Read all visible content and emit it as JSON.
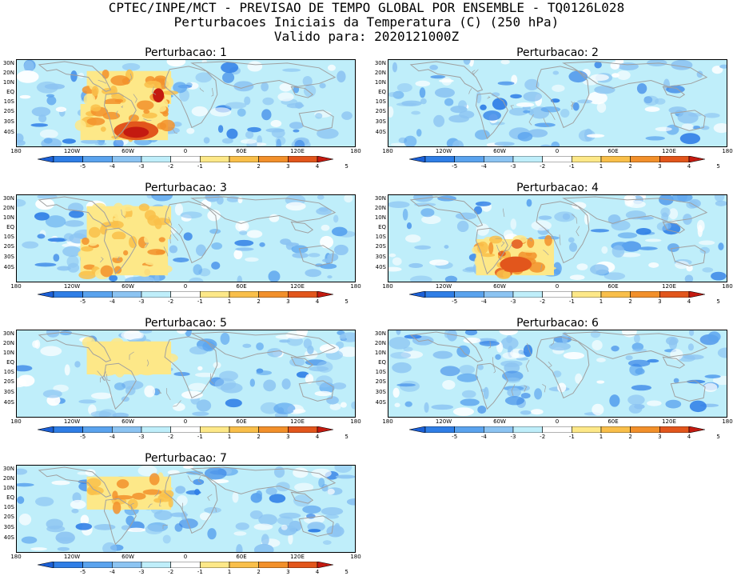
{
  "header": {
    "line1": "CPTEC/INPE/MCT - PREVISAO DE TEMPO GLOBAL POR ENSEMBLE - TQ0126L028",
    "line2": "Perturbacoes Iniciais da Temperatura (C) (250 hPa)",
    "line3": "Valido para: 2020121000Z"
  },
  "axes": {
    "lat_labels": [
      "30N",
      "20N",
      "10N",
      "EQ",
      "10S",
      "20S",
      "30S",
      "40S"
    ],
    "lon_labels": [
      "180",
      "120W",
      "60W",
      "0",
      "60E",
      "120E",
      "180"
    ]
  },
  "colorbar": {
    "labels": [
      "-5",
      "-4",
      "-3",
      "-2",
      "-1",
      "1",
      "2",
      "3",
      "4",
      "5"
    ],
    "colors": [
      "#1a5fd6",
      "#2f7ee6",
      "#5aa3ee",
      "#8cc4f2",
      "#bfeefa",
      "#ffffff",
      "#fde888",
      "#f9bf4a",
      "#f2902b",
      "#e2561c",
      "#c41a10"
    ]
  },
  "map_colors": {
    "neutral": "#bfeefa",
    "light_blue": "#8cc4f2",
    "mid_blue": "#5aa3ee",
    "dark_blue": "#2f7ee6",
    "white": "#ffffff",
    "yellow": "#fde888",
    "orange": "#f9bf4a",
    "dark_orange": "#f2902b",
    "red": "#e2561c",
    "dark_red": "#c41a10",
    "coast": "#a0a0a0"
  },
  "panels": [
    {
      "id": "1",
      "title": "Perturbacao: 1",
      "warm": "strong"
    },
    {
      "id": "2",
      "title": "Perturbacao: 2",
      "warm": "none"
    },
    {
      "id": "3",
      "title": "Perturbacao: 3",
      "warm": "medium"
    },
    {
      "id": "4",
      "title": "Perturbacao: 4",
      "warm": "south"
    },
    {
      "id": "5",
      "title": "Perturbacao: 5",
      "warm": "weak-north"
    },
    {
      "id": "6",
      "title": "Perturbacao: 6",
      "warm": "none"
    },
    {
      "id": "7",
      "title": "Perturbacao: 7",
      "warm": "north"
    }
  ]
}
